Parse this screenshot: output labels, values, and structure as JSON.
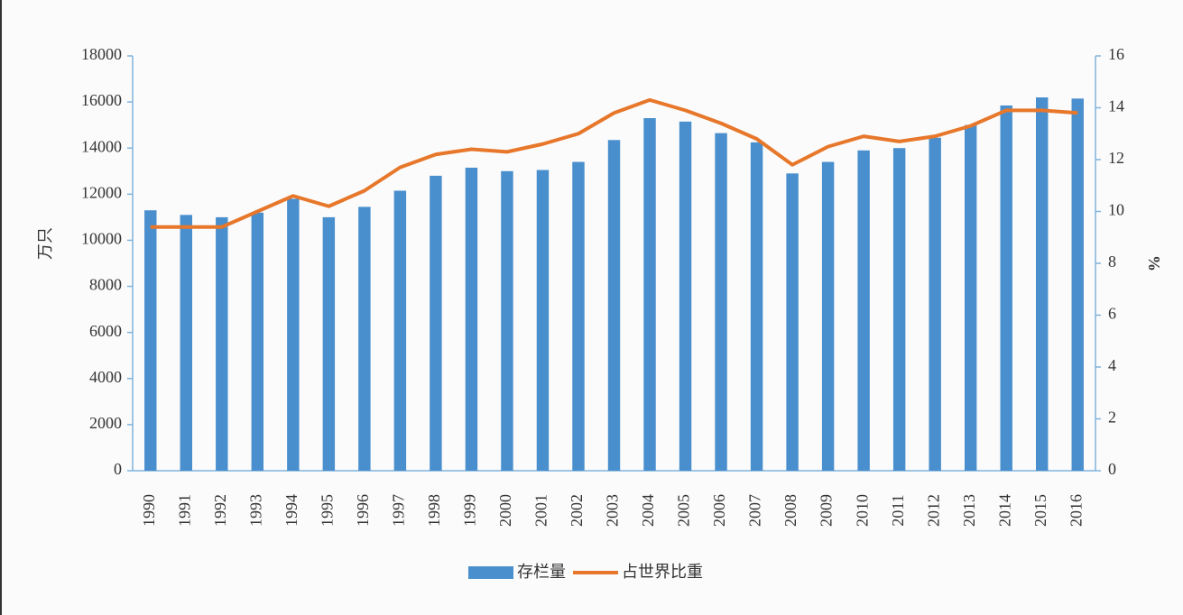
{
  "chart_data": {
    "type": "bar-line",
    "y_label": "万只",
    "y2_label": "%",
    "categories": [
      "1990",
      "1991",
      "1992",
      "1993",
      "1994",
      "1995",
      "1996",
      "1997",
      "1998",
      "1999",
      "2000",
      "2001",
      "2002",
      "2003",
      "2004",
      "2005",
      "2006",
      "2007",
      "2008",
      "2009",
      "2010",
      "2011",
      "2012",
      "2013",
      "2014",
      "2015",
      "2016"
    ],
    "series": [
      {
        "name": "存栏量",
        "type": "bar",
        "color": "#4a8fcd",
        "values": [
          11300,
          11100,
          11000,
          11200,
          11800,
          11000,
          11450,
          12150,
          12800,
          13150,
          13000,
          13050,
          13400,
          14350,
          15300,
          15150,
          14650,
          14250,
          12900,
          13400,
          13900,
          14000,
          14450,
          15000,
          15850,
          16200,
          16150
        ]
      },
      {
        "name": "占世界比重",
        "type": "line",
        "axis": "y2",
        "color": "#e7772a",
        "values": [
          9.4,
          9.4,
          9.4,
          10.0,
          10.6,
          10.2,
          10.8,
          11.7,
          12.2,
          12.4,
          12.3,
          12.6,
          13.0,
          13.8,
          14.3,
          13.9,
          13.4,
          12.8,
          11.8,
          12.5,
          12.9,
          12.7,
          12.9,
          13.3,
          13.9,
          13.9,
          13.8
        ]
      }
    ],
    "ylim": [
      0,
      18000
    ],
    "yticks": [
      0,
      2000,
      4000,
      6000,
      8000,
      10000,
      12000,
      14000,
      16000,
      18000
    ],
    "y2lim": [
      0,
      16
    ],
    "y2ticks": [
      0,
      2,
      4,
      6,
      8,
      10,
      12,
      14,
      16
    ],
    "legend": "bottom"
  }
}
